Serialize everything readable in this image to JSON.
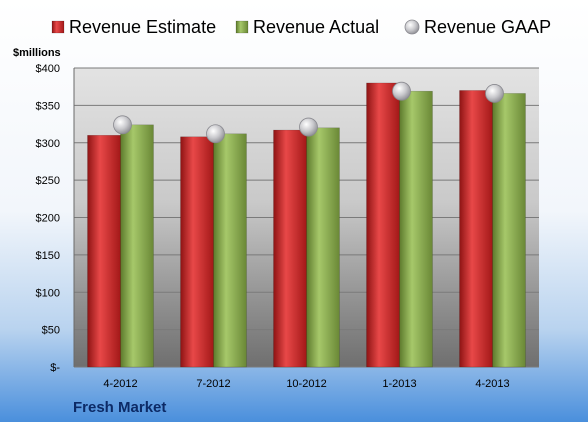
{
  "chart_data": {
    "type": "bar",
    "unit_label": "$millions",
    "company": "Fresh Market",
    "categories": [
      "4-2012",
      "7-2012",
      "10-2012",
      "1-2013",
      "4-2013"
    ],
    "series": [
      {
        "name": "Revenue Estimate",
        "kind": "bar",
        "color": "#d42a2a",
        "values": [
          310,
          308,
          317,
          380,
          370
        ]
      },
      {
        "name": "Revenue Actual",
        "kind": "bar",
        "color": "#8db050",
        "values": [
          324,
          312,
          320,
          369,
          366
        ]
      },
      {
        "name": "Revenue GAAP",
        "kind": "marker",
        "color": "#c8c8cc",
        "values": [
          324,
          312,
          321,
          369,
          366
        ]
      }
    ],
    "ylim": [
      0,
      400
    ],
    "yticks": [
      0,
      50,
      100,
      150,
      200,
      250,
      300,
      350,
      400
    ],
    "ytick_labels": [
      "$-",
      "$50",
      "$100",
      "$150",
      "$200",
      "$250",
      "$300",
      "$350",
      "$400"
    ],
    "grid": true,
    "legend_position": "top"
  }
}
